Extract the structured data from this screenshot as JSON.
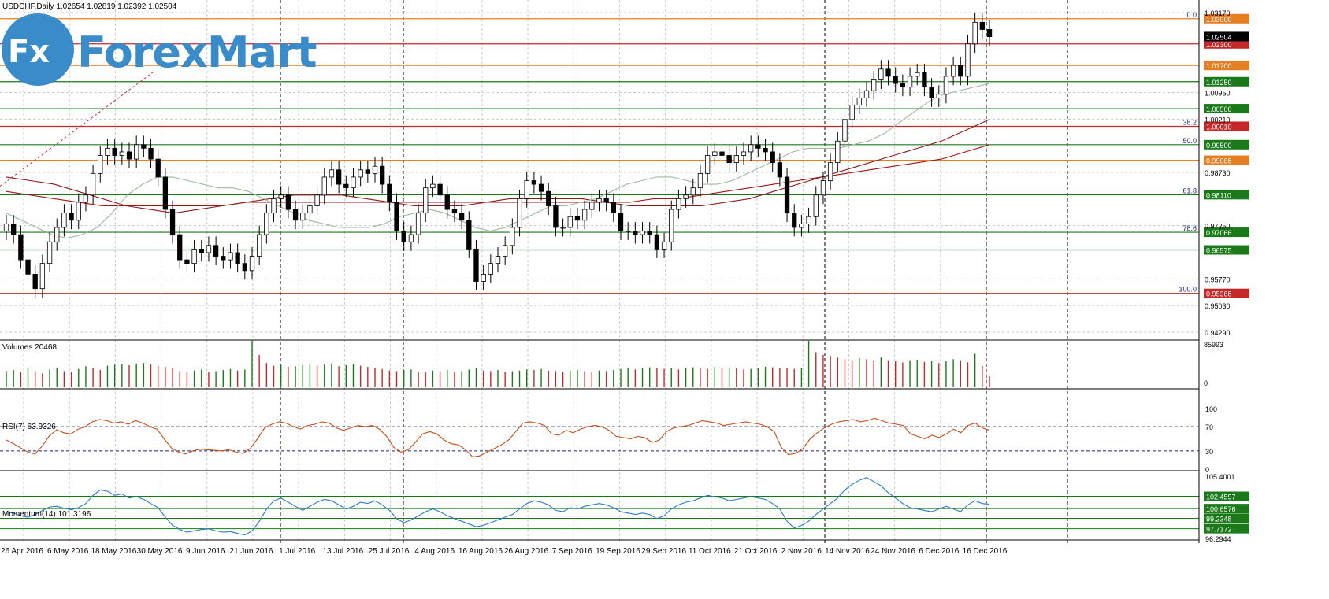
{
  "window": {
    "symbol_line": "USDCHF,Daily  1.02654 1.02819 1.02392 1.02504"
  },
  "logo": {
    "fx": "Fx",
    "wordmark": "ForexMart"
  },
  "colors": {
    "bull": "#ffffff",
    "bear": "#000000",
    "grid": "#c8c8c8",
    "ma_fast": "#9fb79f",
    "ma_mid": "#8b1a1a",
    "ma_slow": "#a31515",
    "support": "#1a7a1a",
    "resistance": "#c62828",
    "fib": "#1a237e",
    "orange": "#e67e22",
    "rsi": "#c0501a",
    "momentum": "#2b7bc9"
  },
  "chart_data": [
    {
      "type": "candlestick",
      "title": "USDCHF,Daily",
      "ohlc_header": "1.02654 1.02819 1.02392 1.02504",
      "x_tick_labels": [
        "26 Apr 2016",
        "6 May 2016",
        "18 May 2016",
        "30 May 2016",
        "9 Jun 2016",
        "21 Jun 2016",
        "1 Jul 2016",
        "13 Jul 2016",
        "25 Jul 2016",
        "4 Aug 2016",
        "16 Aug 2016",
        "26 Aug 2016",
        "7 Sep 2016",
        "19 Sep 2016",
        "29 Sep 2016",
        "11 Oct 2016",
        "21 Oct 2016",
        "2 Nov 2016",
        "14 Nov 2016",
        "24 Nov 2016",
        "6 Dec 2016",
        "16 Dec 2016"
      ],
      "y_tick_labels": [
        "1.03170",
        "1.00950",
        "1.00210",
        "0.98730",
        "0.97250",
        "0.95770",
        "0.95030",
        "0.94290"
      ],
      "ylim": [
        0.9429,
        1.0317
      ],
      "current_price": "1.02504",
      "price_levels": [
        {
          "value": 1.03,
          "label": "1.03000",
          "kind": "orange",
          "fib": "0.0"
        },
        {
          "value": 1.023,
          "label": "1.02300",
          "kind": "resistance"
        },
        {
          "value": 1.017,
          "label": "1.01700",
          "kind": "orange"
        },
        {
          "value": 1.0125,
          "label": "1.01250",
          "kind": "support"
        },
        {
          "value": 1.005,
          "label": "1.00500",
          "kind": "support"
        },
        {
          "value": 1.0001,
          "label": "1.00010",
          "kind": "resistance",
          "fib": "38.2"
        },
        {
          "value": 0.995,
          "label": "0.99500",
          "kind": "support",
          "fib": "50.0"
        },
        {
          "value": 0.99068,
          "label": "0.99068",
          "kind": "orange"
        },
        {
          "value": 0.9811,
          "label": "0.98110",
          "kind": "support",
          "fib": "61.8"
        },
        {
          "value": 0.97066,
          "label": "0.97066",
          "kind": "support",
          "fib": "78.6"
        },
        {
          "value": 0.96575,
          "label": "0.96575",
          "kind": "support"
        },
        {
          "value": 0.95368,
          "label": "0.95368",
          "kind": "resistance",
          "fib": "100.0"
        }
      ],
      "closes": [
        0.973,
        0.97,
        0.963,
        0.959,
        0.955,
        0.962,
        0.968,
        0.972,
        0.976,
        0.974,
        0.979,
        0.981,
        0.987,
        0.992,
        0.994,
        0.992,
        0.993,
        0.991,
        0.995,
        0.994,
        0.991,
        0.986,
        0.977,
        0.97,
        0.963,
        0.962,
        0.966,
        0.965,
        0.967,
        0.964,
        0.963,
        0.965,
        0.962,
        0.96,
        0.964,
        0.97,
        0.976,
        0.98,
        0.981,
        0.977,
        0.974,
        0.976,
        0.978,
        0.981,
        0.986,
        0.988,
        0.984,
        0.983,
        0.986,
        0.988,
        0.987,
        0.989,
        0.984,
        0.979,
        0.971,
        0.968,
        0.97,
        0.976,
        0.983,
        0.984,
        0.981,
        0.977,
        0.976,
        0.974,
        0.966,
        0.957,
        0.959,
        0.962,
        0.964,
        0.967,
        0.972,
        0.98,
        0.985,
        0.984,
        0.982,
        0.978,
        0.972,
        0.972,
        0.975,
        0.974,
        0.977,
        0.979,
        0.98,
        0.979,
        0.976,
        0.971,
        0.971,
        0.97,
        0.971,
        0.97,
        0.966,
        0.968,
        0.977,
        0.98,
        0.981,
        0.983,
        0.987,
        0.992,
        0.993,
        0.992,
        0.99,
        0.992,
        0.993,
        0.995,
        0.994,
        0.993,
        0.99,
        0.986,
        0.976,
        0.972,
        0.973,
        0.975,
        0.981,
        0.985,
        0.99,
        0.996,
        1.002,
        1.006,
        1.008,
        1.01,
        1.013,
        1.016,
        1.014,
        1.012,
        1.011,
        1.014,
        1.015,
        1.011,
        1.008,
        1.009,
        1.014,
        1.017,
        1.014,
        1.023,
        1.029,
        1.027,
        1.025
      ],
      "ma_fast": [
        0.976,
        0.974,
        0.972,
        0.97,
        0.969,
        0.97,
        0.972,
        0.976,
        0.981,
        0.984,
        0.986,
        0.986,
        0.985,
        0.984,
        0.983,
        0.983,
        0.982,
        0.98,
        0.978,
        0.976,
        0.974,
        0.973,
        0.972,
        0.972,
        0.972,
        0.973,
        0.975,
        0.976,
        0.977,
        0.976,
        0.974,
        0.972,
        0.971,
        0.972,
        0.974,
        0.976,
        0.978,
        0.978,
        0.979,
        0.98,
        0.982,
        0.984,
        0.985,
        0.986,
        0.986,
        0.985,
        0.984,
        0.984,
        0.985,
        0.987,
        0.989,
        0.991,
        0.993,
        0.994,
        0.994,
        0.994,
        0.995,
        0.996,
        0.998,
        1.001,
        1.004,
        1.007,
        1.009,
        1.01,
        1.011,
        1.012
      ],
      "ma_mid": [
        0.986,
        0.985,
        0.984,
        0.982,
        0.98,
        0.978,
        0.977,
        0.976,
        0.977,
        0.978,
        0.979,
        0.98,
        0.981,
        0.981,
        0.981,
        0.98,
        0.979,
        0.978,
        0.978,
        0.978,
        0.979,
        0.98,
        0.98,
        0.98,
        0.98,
        0.979,
        0.978,
        0.978,
        0.978,
        0.978,
        0.979,
        0.98,
        0.982,
        0.984,
        0.986,
        0.988,
        0.99,
        0.992,
        0.994,
        0.996,
        0.999,
        1.002
      ],
      "ma_slow": [
        0.982,
        0.981,
        0.98,
        0.979,
        0.978,
        0.978,
        0.978,
        0.978,
        0.978,
        0.978,
        0.979,
        0.979,
        0.979,
        0.979,
        0.979,
        0.979,
        0.979,
        0.979,
        0.979,
        0.979,
        0.979,
        0.979,
        0.979,
        0.979,
        0.979,
        0.979,
        0.979,
        0.98,
        0.98,
        0.981,
        0.982,
        0.983,
        0.984,
        0.985,
        0.986,
        0.987,
        0.988,
        0.989,
        0.99,
        0.991,
        0.993,
        0.995
      ]
    },
    {
      "type": "bar",
      "title": "Volumes 20468",
      "y_tick_labels": [
        "85993",
        "0"
      ],
      "ylim": [
        0,
        85993
      ],
      "values": [
        30000,
        32000,
        28000,
        35000,
        30000,
        26000,
        33000,
        36000,
        30000,
        28000,
        34000,
        39000,
        35000,
        32000,
        40000,
        42000,
        43000,
        41000,
        44000,
        45000,
        42000,
        40000,
        38000,
        35000,
        30000,
        28000,
        31000,
        33000,
        29000,
        30000,
        32000,
        34000,
        31000,
        33000,
        85993,
        60000,
        45000,
        40000,
        42000,
        38000,
        39000,
        41000,
        43000,
        40000,
        42000,
        44000,
        39000,
        41000,
        43000,
        40000,
        38000,
        36000,
        34000,
        31000,
        30000,
        32000,
        33000,
        29000,
        28000,
        31000,
        30000,
        32000,
        29000,
        30000,
        33000,
        35000,
        31000,
        30000,
        32000,
        28000,
        30000,
        31000,
        33000,
        32000,
        34000,
        31000,
        30000,
        29000,
        31000,
        32000,
        30000,
        29000,
        31000,
        30000,
        32000,
        34000,
        36000,
        33000,
        35000,
        37000,
        36000,
        34000,
        35000,
        33000,
        36000,
        37000,
        35000,
        34000,
        38000,
        36000,
        37000,
        35000,
        33000,
        34000,
        36000,
        38000,
        37000,
        36000,
        35000,
        34000,
        36000,
        85993,
        65000,
        60000,
        58000,
        55000,
        52000,
        50000,
        54000,
        52000,
        49000,
        55000,
        50000,
        48000,
        46000,
        50000,
        51000,
        47000,
        49000,
        45000,
        48000,
        52000,
        50000,
        46000,
        62000,
        40000,
        20468
      ]
    },
    {
      "type": "line",
      "title": "RSI(7) 63.9326",
      "y_tick_labels": [
        "100",
        "70",
        "30",
        "0"
      ],
      "ylim": [
        0,
        100
      ],
      "levels": [
        70,
        30
      ],
      "values": [
        48,
        42,
        35,
        28,
        25,
        38,
        55,
        65,
        60,
        58,
        66,
        70,
        78,
        82,
        80,
        76,
        78,
        74,
        80,
        76,
        70,
        66,
        50,
        35,
        28,
        25,
        30,
        33,
        32,
        31,
        30,
        32,
        28,
        26,
        34,
        50,
        68,
        74,
        78,
        76,
        70,
        66,
        72,
        74,
        78,
        76,
        68,
        64,
        68,
        72,
        70,
        72,
        66,
        54,
        36,
        28,
        32,
        44,
        58,
        62,
        58,
        48,
        42,
        40,
        32,
        20,
        22,
        28,
        34,
        40,
        48,
        62,
        76,
        78,
        76,
        72,
        58,
        56,
        64,
        60,
        66,
        70,
        72,
        70,
        64,
        54,
        52,
        50,
        54,
        52,
        44,
        48,
        62,
        68,
        70,
        72,
        76,
        80,
        78,
        76,
        72,
        74,
        76,
        78,
        76,
        74,
        70,
        62,
        36,
        24,
        26,
        34,
        50,
        60,
        68,
        74,
        78,
        80,
        82,
        78,
        80,
        84,
        80,
        76,
        74,
        72,
        58,
        54,
        50,
        56,
        52,
        58,
        66,
        60,
        72,
        76,
        68,
        64
      ]
    },
    {
      "type": "line",
      "title": "Momentum(14) 101.3196",
      "y_tick_labels": [
        "105.4001",
        "102.4597",
        "100.6576",
        "99.2348",
        "97.7172",
        "96.2944"
      ],
      "ylim": [
        96.29,
        105.4
      ],
      "levels": [
        102.4597,
        100.6576,
        99.2348,
        97.7172
      ],
      "values": [
        100.2,
        100.0,
        99.6,
        99.4,
        99.8,
        100.4,
        100.9,
        101.0,
        100.7,
        100.5,
        100.8,
        101.4,
        102.6,
        103.4,
        103.2,
        102.6,
        102.8,
        102.2,
        102.4,
        102.0,
        101.4,
        100.8,
        99.4,
        98.2,
        97.6,
        97.2,
        97.4,
        97.6,
        97.7,
        97.4,
        97.2,
        97.3,
        97.0,
        96.8,
        97.4,
        98.8,
        100.6,
        101.8,
        102.2,
        101.6,
        101.0,
        100.4,
        101.0,
        101.6,
        102.0,
        101.8,
        101.2,
        100.6,
        101.0,
        101.6,
        101.4,
        101.8,
        101.2,
        100.4,
        99.2,
        98.6,
        99.0,
        99.6,
        100.2,
        100.6,
        100.2,
        99.6,
        99.2,
        98.8,
        98.4,
        98.0,
        98.2,
        98.6,
        99.0,
        99.4,
        99.8,
        100.6,
        101.4,
        101.8,
        101.6,
        101.2,
        100.4,
        100.2,
        100.8,
        100.6,
        101.0,
        101.2,
        101.4,
        101.2,
        100.8,
        100.2,
        100.0,
        99.8,
        100.0,
        99.8,
        99.2,
        99.6,
        100.6,
        101.2,
        101.6,
        101.8,
        102.2,
        102.6,
        102.4,
        102.2,
        101.8,
        102.0,
        102.2,
        102.4,
        102.2,
        102.0,
        101.4,
        100.6,
        98.8,
        97.8,
        98.2,
        98.8,
        99.8,
        100.6,
        101.4,
        102.2,
        103.4,
        104.2,
        104.8,
        105.2,
        104.6,
        104.0,
        103.0,
        102.2,
        101.4,
        100.8,
        100.6,
        100.4,
        100.2,
        100.6,
        101.0,
        100.6,
        100.2,
        101.2,
        101.8,
        101.4,
        101.3
      ]
    }
  ]
}
